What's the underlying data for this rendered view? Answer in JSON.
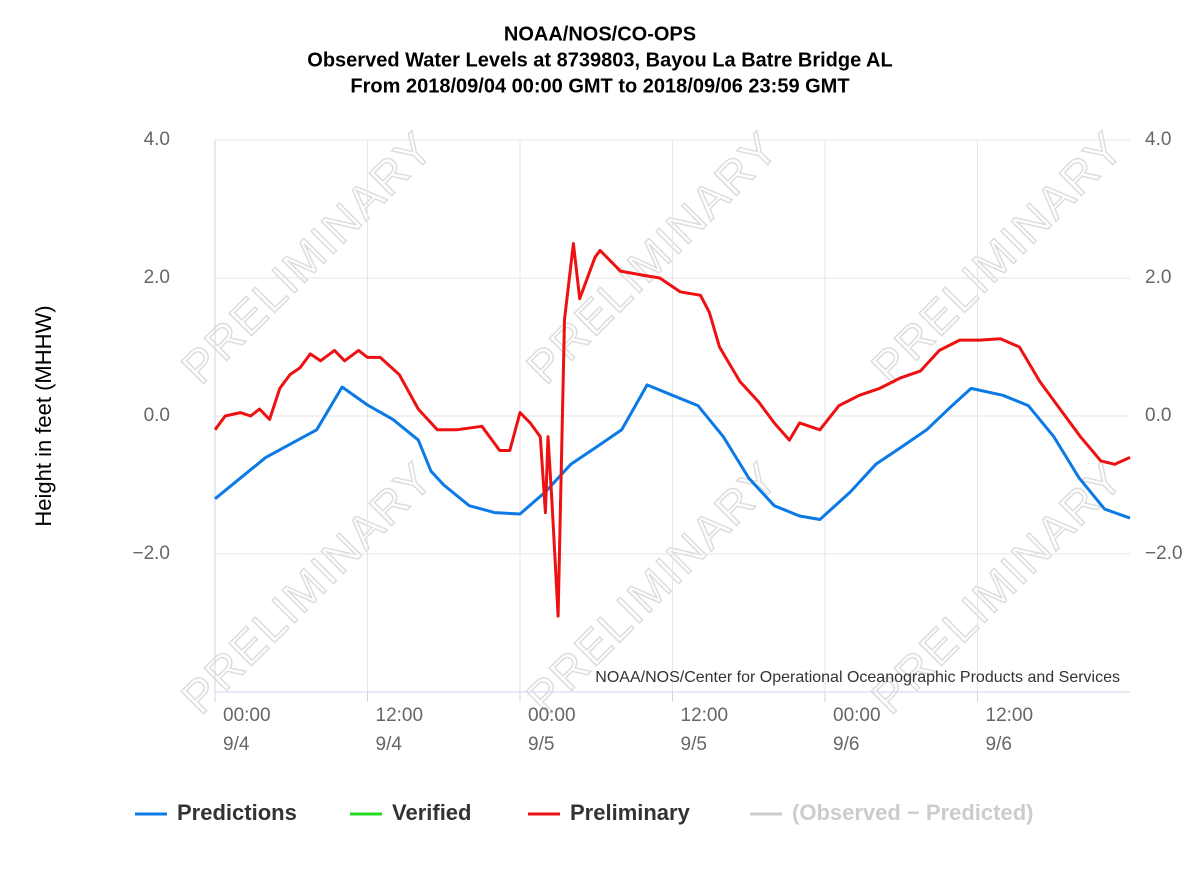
{
  "chart_data": {
    "type": "line",
    "title": [
      "NOAA/NOS/CO-OPS",
      "Observed Water Levels at 8739803, Bayou La Batre Bridge AL",
      "From 2018/09/04 00:00 GMT to 2018/09/06 23:59 GMT"
    ],
    "ylabel": "Height in feet (MHHW)",
    "credit": "NOAA/NOS/Center for Operational Oceanographic Products and Services",
    "watermark": "PRELIMINARY",
    "xlim": [
      0,
      72
    ],
    "xticks": [
      {
        "value": 0,
        "label": "00:00 9/4"
      },
      {
        "value": 12,
        "label": "12:00 9/4"
      },
      {
        "value": 24,
        "label": "00:00 9/5"
      },
      {
        "value": 36,
        "label": "12:00 9/5"
      },
      {
        "value": 48,
        "label": "00:00 9/6"
      },
      {
        "value": 60,
        "label": "12:00 9/6"
      }
    ],
    "ylim": [
      -4,
      4
    ],
    "yticks": [
      {
        "value": -2,
        "label": "−2.0"
      },
      {
        "value": 0,
        "label": "0.0"
      },
      {
        "value": 2,
        "label": "2.0"
      },
      {
        "value": 4,
        "label": "4.0"
      }
    ],
    "grid": true,
    "series": [
      {
        "name": "Predictions",
        "color": "#0b7ae6",
        "x": [
          0,
          2,
          4,
          6,
          8,
          10,
          12,
          14,
          16,
          17,
          18,
          20,
          22,
          24,
          26,
          28,
          30,
          32,
          34,
          36,
          38,
          40,
          42,
          44,
          46,
          47.6,
          50,
          52,
          54,
          56,
          58,
          59.5,
          62,
          64,
          66,
          68,
          70,
          72
        ],
        "values": [
          -1.2,
          -0.9,
          -0.6,
          -0.4,
          -0.2,
          0.42,
          0.16,
          -0.05,
          -0.35,
          -0.8,
          -1.0,
          -1.3,
          -1.4,
          -1.42,
          -1.1,
          -0.7,
          -0.45,
          -0.2,
          0.45,
          0.3,
          0.15,
          -0.3,
          -0.9,
          -1.3,
          -1.45,
          -1.5,
          -1.1,
          -0.7,
          -0.45,
          -0.2,
          0.15,
          0.4,
          0.3,
          0.15,
          -0.3,
          -0.9,
          -1.35,
          -1.48
        ]
      },
      {
        "name": "Verified",
        "color": "#22dd22",
        "x": [],
        "values": []
      },
      {
        "name": "Preliminary",
        "color": "#ee1111",
        "x": [
          0,
          0.8,
          2,
          2.8,
          3.5,
          4.3,
          5.1,
          5.9,
          6.7,
          7.5,
          8.3,
          9.4,
          10.2,
          11.3,
          12,
          13,
          14.5,
          16,
          17.5,
          19,
          21,
          22.4,
          23.2,
          24,
          24.8,
          25.6,
          26,
          26.2,
          26.5,
          27,
          27.5,
          28.2,
          28.7,
          29.9,
          30.3,
          31.9,
          33.4,
          35,
          36.6,
          38.2,
          38.9,
          39.7,
          41.3,
          42.8,
          44,
          45.2,
          46,
          47.6,
          49.1,
          50.7,
          52.3,
          53.9,
          55.5,
          57,
          58.6,
          60.2,
          61.8,
          63.3,
          64.9,
          66.5,
          68.1,
          69.7,
          70.8,
          72
        ],
        "values": [
          -0.2,
          0.0,
          0.05,
          0.0,
          0.1,
          -0.05,
          0.4,
          0.6,
          0.7,
          0.9,
          0.8,
          0.95,
          0.8,
          0.95,
          0.85,
          0.85,
          0.6,
          0.1,
          -0.2,
          -0.2,
          -0.15,
          -0.5,
          -0.5,
          0.05,
          -0.1,
          -0.3,
          -1.4,
          -0.3,
          -1.2,
          -2.9,
          1.4,
          2.5,
          1.7,
          2.3,
          2.4,
          2.1,
          2.05,
          2.0,
          1.8,
          1.75,
          1.5,
          1.0,
          0.5,
          0.2,
          -0.1,
          -0.35,
          -0.1,
          -0.2,
          0.15,
          0.3,
          0.4,
          0.55,
          0.65,
          0.95,
          1.1,
          1.1,
          1.12,
          1.0,
          0.5,
          0.1,
          -0.3,
          -0.65,
          -0.7,
          -0.6
        ]
      },
      {
        "name": "(Observed − Predicted)",
        "color": "#cccccc",
        "hidden": true,
        "x": [],
        "values": []
      }
    ]
  }
}
